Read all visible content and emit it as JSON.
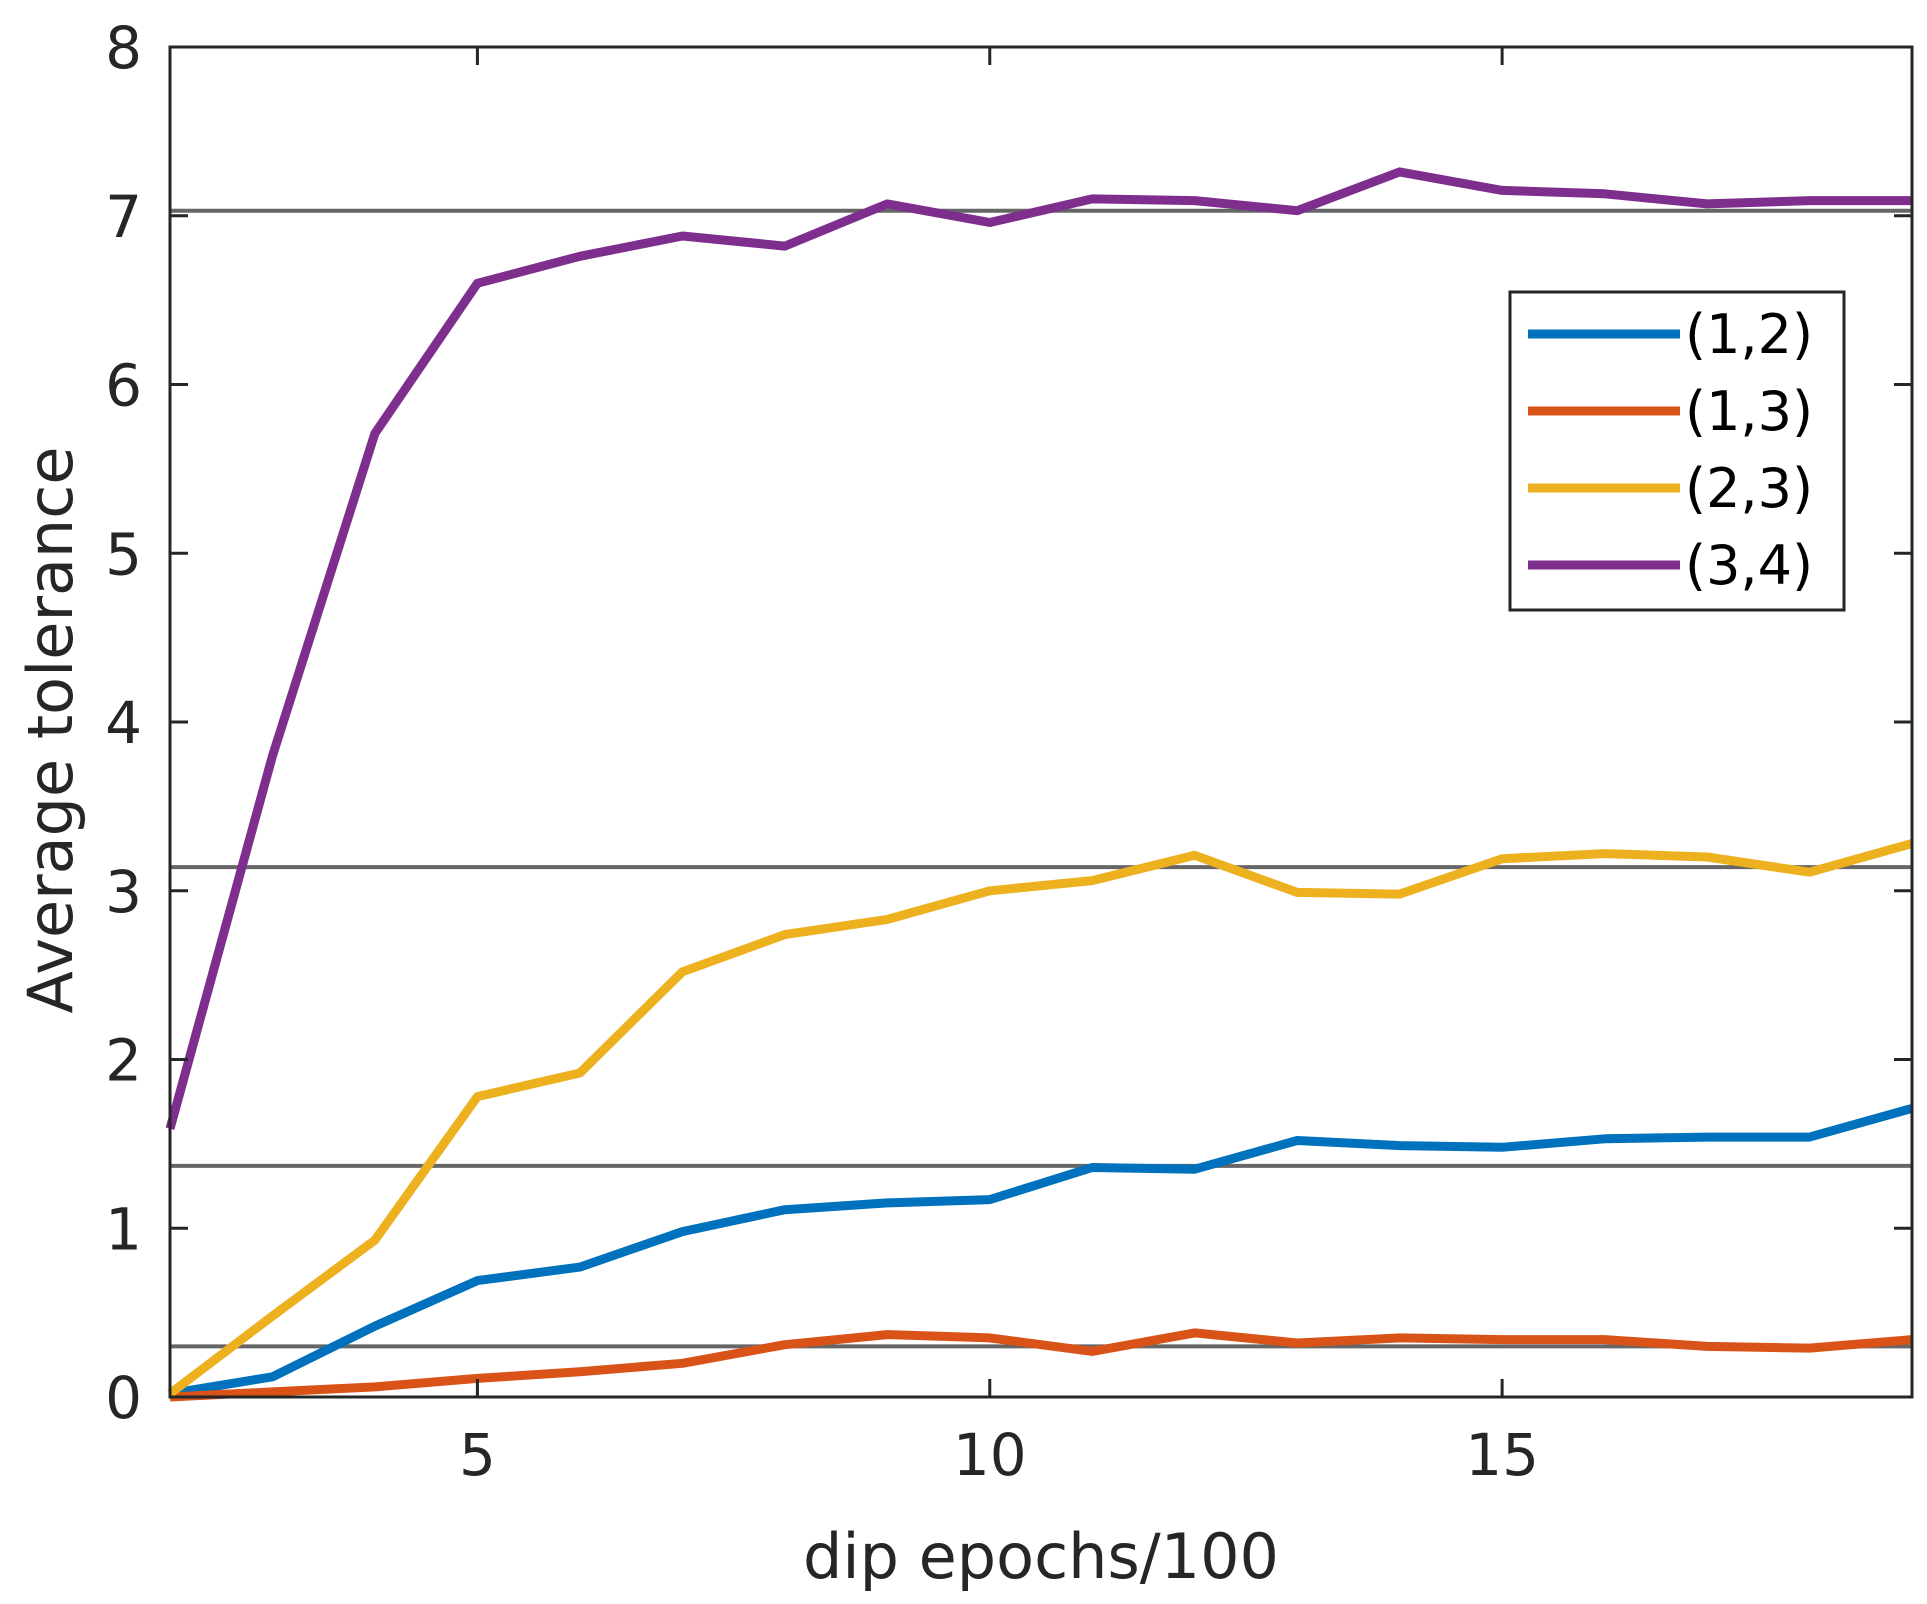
{
  "chart_data": {
    "type": "line",
    "title": "",
    "xlabel": "dip epochs/100",
    "ylabel": "Average tolerance",
    "xlim": [
      2,
      19
    ],
    "ylim": [
      0,
      8
    ],
    "xticks": [
      5,
      10,
      15
    ],
    "yticks": [
      0,
      1,
      2,
      3,
      4,
      5,
      6,
      7,
      8
    ],
    "grid": false,
    "legend_position": "upper-right",
    "x": [
      2,
      3,
      4,
      5,
      6,
      7,
      8,
      9,
      10,
      11,
      12,
      13,
      14,
      15,
      16,
      17,
      18,
      19
    ],
    "series": [
      {
        "name": "(1,2)",
        "color": "#0072BD",
        "values": [
          0.02,
          0.12,
          0.42,
          0.69,
          0.77,
          0.98,
          1.11,
          1.15,
          1.17,
          1.36,
          1.35,
          1.52,
          1.49,
          1.48,
          1.53,
          1.54,
          1.54,
          1.71
        ]
      },
      {
        "name": "(1,3)",
        "color": "#D95319",
        "values": [
          0.0,
          0.03,
          0.06,
          0.11,
          0.15,
          0.2,
          0.31,
          0.37,
          0.35,
          0.27,
          0.38,
          0.32,
          0.35,
          0.34,
          0.34,
          0.3,
          0.29,
          0.34
        ]
      },
      {
        "name": "(2,3)",
        "color": "#EDB120",
        "values": [
          0.02,
          0.48,
          0.93,
          1.78,
          1.92,
          2.52,
          2.74,
          2.83,
          3.0,
          3.06,
          3.21,
          2.99,
          2.98,
          3.19,
          3.22,
          3.2,
          3.11,
          3.28
        ]
      },
      {
        "name": "(3,4)",
        "color": "#7E2F8E",
        "values": [
          1.59,
          3.8,
          5.71,
          6.6,
          6.76,
          6.88,
          6.82,
          7.07,
          6.96,
          7.1,
          7.09,
          7.03,
          7.26,
          7.15,
          7.13,
          7.07,
          7.09,
          7.09
        ]
      }
    ],
    "reference_lines": [
      {
        "y": 0.3,
        "color": "#666666"
      },
      {
        "y": 1.37,
        "color": "#666666"
      },
      {
        "y": 3.14,
        "color": "#666666"
      },
      {
        "y": 7.03,
        "color": "#666666"
      }
    ]
  }
}
